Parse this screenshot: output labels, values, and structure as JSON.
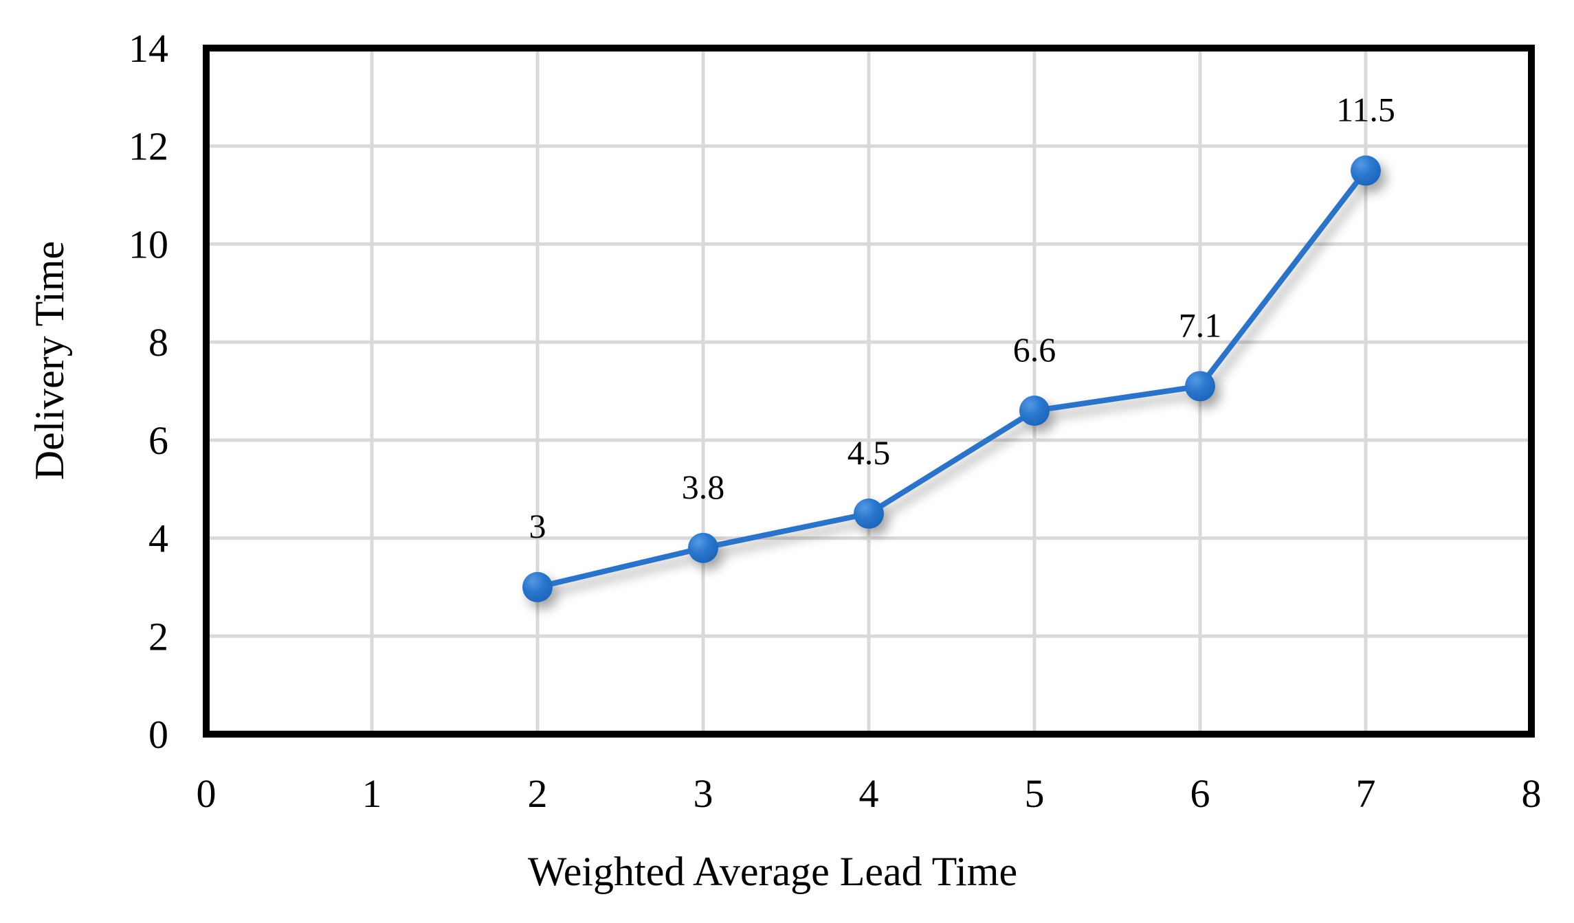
{
  "chart_data": {
    "type": "line",
    "title": "",
    "xlabel": "Weighted Average Lead Time",
    "ylabel": "Delivery Time",
    "x": [
      2,
      3,
      4,
      5,
      6,
      7
    ],
    "y": [
      3,
      3.8,
      4.5,
      6.6,
      7.1,
      11.5
    ],
    "point_labels": [
      "3",
      "3.8",
      "4.5",
      "6.6",
      "7.1",
      "11.5"
    ],
    "xlim": [
      0,
      8
    ],
    "ylim": [
      0,
      14
    ],
    "x_ticks": [
      "0",
      "1",
      "2",
      "3",
      "4",
      "5",
      "6",
      "7",
      "8"
    ],
    "y_ticks": [
      "0",
      "2",
      "4",
      "6",
      "8",
      "10",
      "12",
      "14"
    ],
    "grid": true,
    "legend": false,
    "colors": {
      "line": "#2a73c8",
      "marker_center": "#5599e2",
      "marker_mid": "#2b77cf",
      "marker_edge": "#1a63b7",
      "gridline": "#d9d9d9",
      "plot_border": "#000000",
      "text": "#000000",
      "background": "#ffffff"
    }
  }
}
